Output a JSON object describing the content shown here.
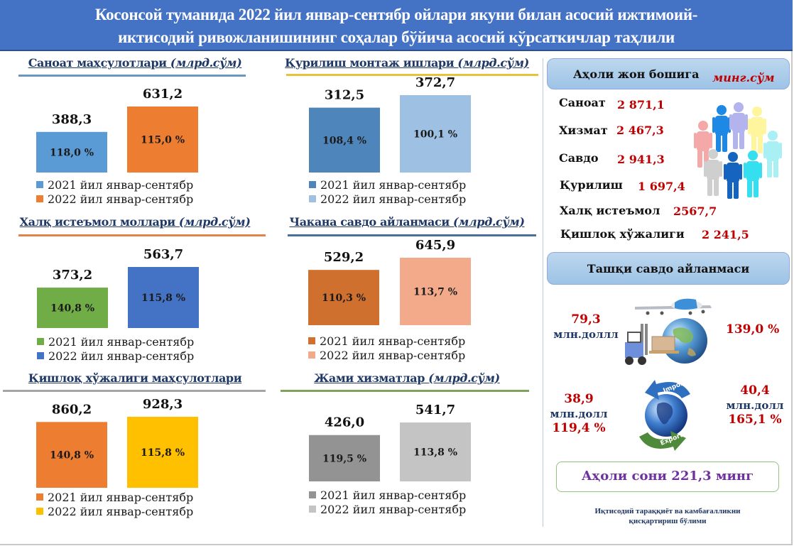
{
  "header": {
    "title_line1": "Косонсой туманида 2022 йил январ-сентябр ойлари якуни билан асосий ижтимоий-",
    "title_line2": "иктисодий ривожланишининг соҳалар бўйича асосий кўрсаткичлар таҳлили"
  },
  "chart_data": [
    {
      "type": "bar",
      "title": "Саноат маҳсулотлари",
      "unit": "(млрд.сўм)",
      "categories": [
        "2021 йил январ-сентябр",
        "2022 йил январ-сентябр"
      ],
      "values": [
        388.3,
        631.2
      ],
      "value_labels": [
        "388,3",
        "631,2"
      ],
      "growth_labels": [
        "118,0 %",
        "115,0 %"
      ],
      "colors": [
        "#5b9bd5",
        "#ed7d31"
      ],
      "rule_color": "#6a97bf",
      "legend": "bottom"
    },
    {
      "type": "bar",
      "title": "Қурилиш монтаж ишлари",
      "unit": "(млрд.сўм)",
      "categories": [
        "2021 йил январ-сентябр",
        "2022 йил январ-сентябр"
      ],
      "values": [
        312.5,
        372.7
      ],
      "value_labels": [
        "312,5",
        "372,7"
      ],
      "growth_labels": [
        "108,4 %",
        "100,1 %"
      ],
      "colors": [
        "#4e86bb",
        "#9dc0e3"
      ],
      "rule_color": "#e8c23a",
      "legend": "bottom"
    },
    {
      "type": "bar",
      "title": "Халқ истеъмол моллари",
      "unit": "(млрд.сўм)",
      "categories": [
        "2021 йил январ-сентябр",
        "2022 йил январ-сентябр"
      ],
      "values": [
        373.2,
        563.7
      ],
      "value_labels": [
        "373,2",
        "563,7"
      ],
      "growth_labels": [
        "140,8 %",
        "115,8 %"
      ],
      "colors": [
        "#70ad47",
        "#4472c4"
      ],
      "rule_color": "#e0844a",
      "legend": "bottom"
    },
    {
      "type": "bar",
      "title": "Чакана савдо айланмаси",
      "unit": "(млрд.сўм)",
      "categories": [
        "2021 йил январ-сентябр",
        "2022 йил январ-сентябр"
      ],
      "values": [
        529.2,
        645.9
      ],
      "value_labels": [
        "529,2",
        "645,9"
      ],
      "growth_labels": [
        "110,3 %",
        "113,7 %"
      ],
      "colors": [
        "#d0702f",
        "#f2aa8a"
      ],
      "rule_color": "#47709b",
      "legend": "bottom"
    },
    {
      "type": "bar",
      "title": "Қишлоқ хўжалиги маҳсулотлари",
      "unit": "",
      "categories": [
        "2021 йил январ-сентябр",
        "2022 йил январ-сентябр"
      ],
      "values": [
        860.2,
        928.3
      ],
      "value_labels": [
        "860,2",
        "928,3"
      ],
      "growth_labels": [
        "140,8 %",
        "115,8 %"
      ],
      "colors": [
        "#ed7d31",
        "#ffc000"
      ],
      "rule_color": "#a5a5a5",
      "legend": "bottom"
    },
    {
      "type": "bar",
      "title": "Жами хизматлар",
      "unit": "(млрд.сўм)",
      "categories": [
        "2021 йил январ-сентябр",
        "2022 йил январ-сентябр"
      ],
      "values": [
        426.0,
        541.7
      ],
      "value_labels": [
        "426,0",
        "541,7"
      ],
      "growth_labels": [
        "119,5 %",
        "113,8 %"
      ],
      "colors": [
        "#939393",
        "#c4c4c4"
      ],
      "rule_color": "#7fa35a",
      "legend": "bottom"
    }
  ],
  "per_capita": {
    "title": "Аҳоли жон бошига",
    "unit": "минг.сўм",
    "rows": [
      {
        "label": "Саноат",
        "value": "2 871,1"
      },
      {
        "label": "Хизмат",
        "value": "2 467,3"
      },
      {
        "label": "Савдо",
        "value": "2 941,3"
      },
      {
        "label": "Қурилиш",
        "value": "1 697,4"
      },
      {
        "label": "Халқ истеъмол",
        "value": "2567,7"
      },
      {
        "label": "Қишлоқ хўжалиги",
        "value": "2 241,5"
      }
    ],
    "icon": "people-group-icon"
  },
  "foreign_trade": {
    "title": "Ташқи савдо айланмаси",
    "total": {
      "value": "79,3",
      "unit": "млн.доллл",
      "growth": "139,0 %"
    },
    "import": {
      "label": "Import",
      "value": "38,9",
      "unit": "млн.долл",
      "growth": "119,4 %"
    },
    "export": {
      "label": "Export",
      "value": "40,4",
      "unit": "млн.долл",
      "growth": "165,1 %"
    }
  },
  "population": {
    "text": "Аҳоли сони 221,3 минг"
  },
  "footer": {
    "line1": "Иқтисодий тараққиёт ва камбағалликни",
    "line2": "қисқартириш бўлими"
  }
}
